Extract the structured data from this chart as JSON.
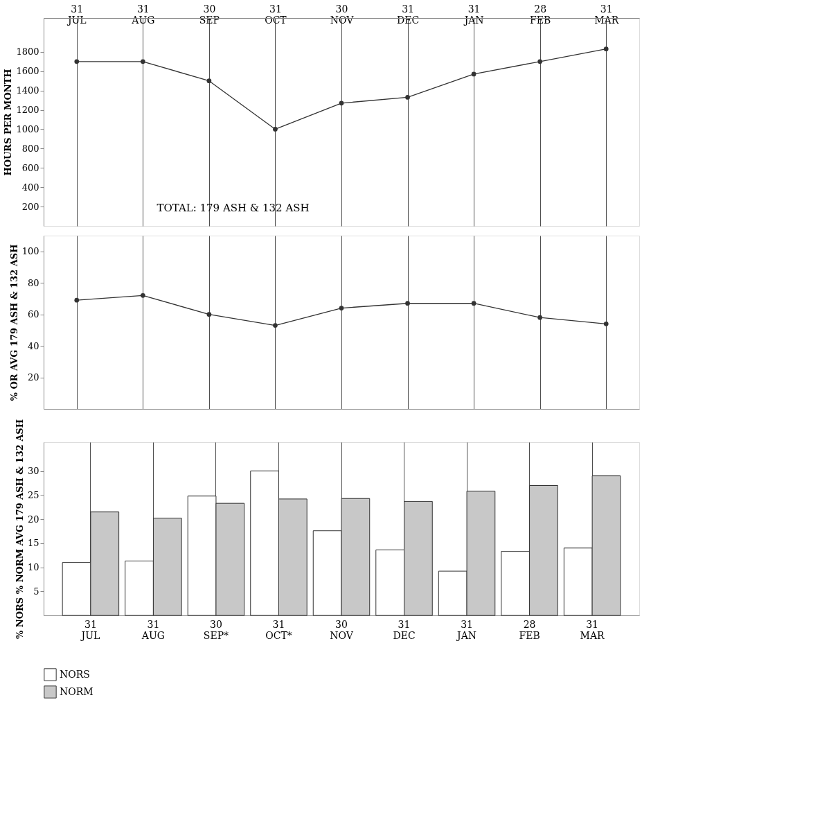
{
  "chart_data": [
    {
      "type": "line",
      "ylabel": "HOURS PER MONTH",
      "categories": [
        "31 JUL",
        "31 AUG",
        "30 SEP",
        "31 OCT",
        "30 NOV",
        "31 DEC",
        "31 JAN",
        "28 FEB",
        "31 MAR"
      ],
      "series": [
        {
          "color": "#333333",
          "values": [
            1700,
            1700,
            1500,
            1000,
            1270,
            1330,
            1570,
            1700,
            1830
          ]
        }
      ],
      "ylim": [
        0,
        2150
      ],
      "yticks": [
        200,
        400,
        600,
        800,
        1000,
        1200,
        1400,
        1600,
        1800
      ],
      "grid": "x",
      "marker": "circle",
      "line_style": "solid",
      "annotations": [
        "TOTAL: 179 ASH & 132 ASH"
      ]
    },
    {
      "type": "line",
      "ylabel": "% OR AVG 179 ASH & 132 ASH",
      "categories": [
        null,
        null,
        null,
        null,
        null,
        null,
        null,
        null,
        null
      ],
      "series": [
        {
          "color": "#333333",
          "values": [
            69,
            72,
            60,
            53,
            64,
            67,
            67,
            58,
            54
          ]
        }
      ],
      "ylim": [
        0,
        110
      ],
      "yticks": [
        20,
        40,
        60,
        80,
        100
      ],
      "grid": "x",
      "marker": "circle",
      "line_style": "solid",
      "tick_labels": "y"
    },
    {
      "type": "bar",
      "ylabel": "% NORS % NORM AVG 179 ASH & 132 ASH",
      "categories": [
        "31 JUL",
        "31 AUG",
        "30 SEP*",
        "31 OCT*",
        "30 NOV",
        "31 DEC",
        "31 JAN",
        "28 FEB",
        "31 MAR"
      ],
      "series": [
        {
          "name": "NORS",
          "color": "#ffffff",
          "values": [
            11,
            11.3,
            24.8,
            30,
            17.6,
            13.6,
            9.2,
            13.3,
            14
          ]
        },
        {
          "name": "NORM",
          "color": "#c8c8c8",
          "values": [
            21.5,
            20.2,
            23.3,
            24.2,
            24.3,
            23.7,
            25.8,
            27,
            29
          ]
        }
      ],
      "ylim": [
        0,
        36
      ],
      "yticks": [
        5,
        10,
        15,
        20,
        25,
        30
      ],
      "grid": "x",
      "legend": "bottom left"
    }
  ]
}
